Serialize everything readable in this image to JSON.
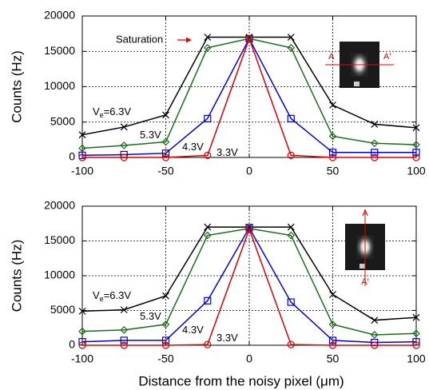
{
  "chart_data": [
    {
      "type": "line",
      "y_label": "Counts (Hz)",
      "x": [
        -100,
        -75,
        -50,
        -25,
        0,
        25,
        50,
        75,
        100
      ],
      "xlim": [
        -100,
        100
      ],
      "xticks": [
        -100,
        -50,
        0,
        50,
        100
      ],
      "ylim": [
        0,
        20000
      ],
      "yticks": [
        0,
        5000,
        10000,
        15000,
        20000
      ],
      "grid": true,
      "series": [
        {
          "name": "6.3V",
          "color": "#000000",
          "marker": "x",
          "values": [
            3200,
            4300,
            6000,
            17000,
            17000,
            17000,
            7400,
            4700,
            4200
          ]
        },
        {
          "name": "5.3V",
          "color": "#1a6e1a",
          "marker": "diamond",
          "values": [
            1300,
            1700,
            2200,
            15500,
            16800,
            15500,
            3000,
            2000,
            1800
          ]
        },
        {
          "name": "4.3V",
          "color": "#0000dd",
          "marker": "square",
          "values": [
            300,
            400,
            600,
            5500,
            16800,
            5500,
            700,
            700,
            700
          ]
        },
        {
          "name": "3.3V",
          "color": "#dd0000",
          "marker": "circle",
          "values": [
            0,
            0,
            0,
            300,
            16800,
            300,
            0,
            0,
            0
          ]
        }
      ],
      "series_label_prefix": {
        "text": "V",
        "subscript": "e",
        "sep": "="
      },
      "annotation": "Saturation",
      "inset": {
        "orientation": "horizontal",
        "start": "A",
        "end": "A'"
      }
    },
    {
      "type": "line",
      "y_label": "Counts (Hz)",
      "x_label": "Distance from the noisy pixel (μm)",
      "x": [
        -100,
        -75,
        -50,
        -25,
        0,
        25,
        50,
        75,
        100
      ],
      "xlim": [
        -100,
        100
      ],
      "xticks": [
        -100,
        -50,
        0,
        50,
        100
      ],
      "ylim": [
        0,
        20000
      ],
      "yticks": [
        0,
        5000,
        10000,
        15000,
        20000
      ],
      "grid": true,
      "series": [
        {
          "name": "6.3V",
          "color": "#000000",
          "marker": "x",
          "values": [
            4900,
            5100,
            7100,
            17000,
            17000,
            17000,
            7300,
            3600,
            4000
          ]
        },
        {
          "name": "5.3V",
          "color": "#1a6e1a",
          "marker": "diamond",
          "values": [
            2000,
            2200,
            3000,
            15800,
            16800,
            15800,
            3000,
            1500,
            1700
          ]
        },
        {
          "name": "4.3V",
          "color": "#0000dd",
          "marker": "square",
          "values": [
            500,
            700,
            700,
            6400,
            16900,
            6200,
            700,
            400,
            500
          ]
        },
        {
          "name": "3.3V",
          "color": "#dd0000",
          "marker": "circle",
          "values": [
            0,
            0,
            0,
            100,
            16700,
            100,
            0,
            0,
            0
          ]
        }
      ],
      "series_label_prefix": {
        "text": "V",
        "subscript": "e",
        "sep": "="
      },
      "inset": {
        "orientation": "vertical",
        "start": "A",
        "end": "A'"
      }
    }
  ]
}
